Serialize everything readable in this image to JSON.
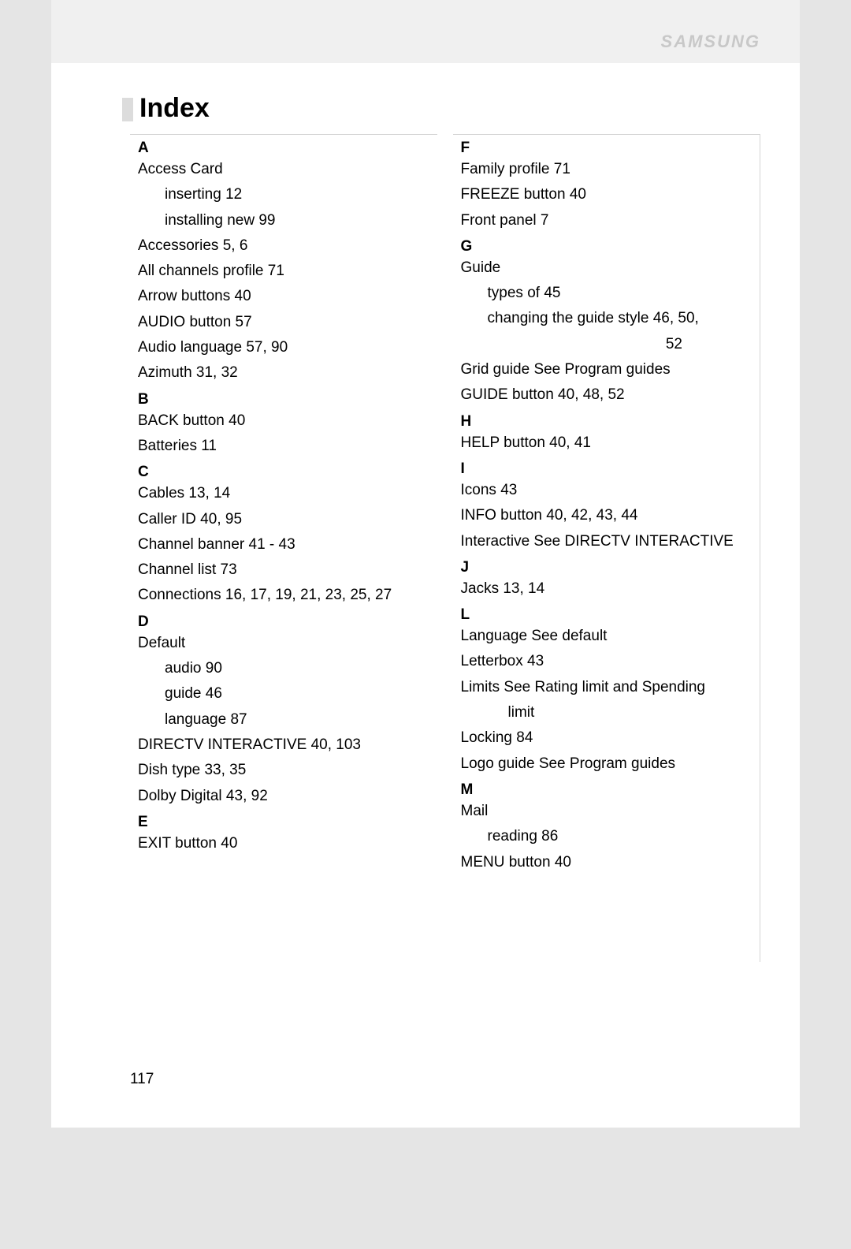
{
  "brand_text": "SAMSUNG",
  "page_title": "Index",
  "page_number": "117",
  "colors": {
    "page_bg": "#ffffff",
    "outer_bg": "#e5e5e5",
    "header_band": "#f0f0f0",
    "accent_block": "#dcdcdc",
    "brand_color": "#c8c8c8",
    "border_color": "#d4d4d4",
    "text_color": "#000000"
  },
  "typography": {
    "title_fontsize": 34,
    "body_fontsize": 19,
    "line_height": 1.7,
    "font_family": "Arial"
  },
  "left_column": [
    {
      "type": "letter",
      "text": "A"
    },
    {
      "type": "entry",
      "text": "Access Card"
    },
    {
      "type": "sub",
      "text": "inserting  12"
    },
    {
      "type": "sub",
      "text": "installing new  99"
    },
    {
      "type": "entry",
      "text": "Accessories  5, 6"
    },
    {
      "type": "entry",
      "text": "All channels profile  71"
    },
    {
      "type": "entry",
      "text": "Arrow buttons  40"
    },
    {
      "type": "entry",
      "text": "AUDIO button  57"
    },
    {
      "type": "entry",
      "text": "Audio language  57, 90"
    },
    {
      "type": "entry",
      "text": "Azimuth  31, 32"
    },
    {
      "type": "letter",
      "text": "B"
    },
    {
      "type": "entry",
      "text": "BACK button  40"
    },
    {
      "type": "entry",
      "text": "Batteries  11"
    },
    {
      "type": "letter",
      "text": "C"
    },
    {
      "type": "entry",
      "text": "Cables  13, 14"
    },
    {
      "type": "entry",
      "text": "Caller ID  40, 95"
    },
    {
      "type": "entry",
      "text": "Channel banner  41 - 43"
    },
    {
      "type": "entry",
      "text": "Channel list  73"
    },
    {
      "type": "entry",
      "text": "Connections  16, 17, 19, 21, 23, 25, 27"
    },
    {
      "type": "letter",
      "text": "D"
    },
    {
      "type": "entry",
      "text": "Default"
    },
    {
      "type": "sub",
      "text": "audio  90"
    },
    {
      "type": "sub",
      "text": "guide  46"
    },
    {
      "type": "sub",
      "text": "language  87"
    },
    {
      "type": "entry",
      "text": "DIRECTV INTERACTIVE  40, 103"
    },
    {
      "type": "entry",
      "text": "Dish type  33, 35"
    },
    {
      "type": "entry",
      "text": "Dolby Digital  43, 92"
    },
    {
      "type": "letter",
      "text": "E"
    },
    {
      "type": "entry",
      "text": "EXIT button  40"
    }
  ],
  "right_column": [
    {
      "type": "letter",
      "text": "F"
    },
    {
      "type": "entry",
      "text": "Family profile  71"
    },
    {
      "type": "entry",
      "text": "FREEZE button  40"
    },
    {
      "type": "entry",
      "text": "Front panel  7"
    },
    {
      "type": "letter",
      "text": "G"
    },
    {
      "type": "entry",
      "text": "Guide"
    },
    {
      "type": "sub",
      "text": "types of  45"
    },
    {
      "type": "sub",
      "text": "changing the guide style  46, 50,"
    },
    {
      "type": "right",
      "text": "52"
    },
    {
      "type": "entry",
      "text": "Grid guide  See Program guides"
    },
    {
      "type": "entry",
      "text": "GUIDE button  40, 48, 52"
    },
    {
      "type": "letter",
      "text": "H"
    },
    {
      "type": "entry",
      "text": "HELP button  40, 41"
    },
    {
      "type": "letter",
      "text": "I"
    },
    {
      "type": "entry",
      "text": "Icons  43"
    },
    {
      "type": "entry",
      "text": "INFO button  40, 42, 43, 44"
    },
    {
      "type": "entry",
      "text": "Interactive See DIRECTV INTERACTIVE"
    },
    {
      "type": "letter",
      "text": "J"
    },
    {
      "type": "entry",
      "text": "Jacks  13, 14"
    },
    {
      "type": "letter",
      "text": "L"
    },
    {
      "type": "entry",
      "text": "Language  See default"
    },
    {
      "type": "entry",
      "text": "Letterbox  43"
    },
    {
      "type": "entry",
      "text": "Limits  See Rating limit and Spending"
    },
    {
      "type": "sub2",
      "text": "limit"
    },
    {
      "type": "entry",
      "text": "Locking  84"
    },
    {
      "type": "entry",
      "text": "Logo guide  See Program guides"
    },
    {
      "type": "letter",
      "text": "M"
    },
    {
      "type": "entry",
      "text": "Mail"
    },
    {
      "type": "sub",
      "text": "reading  86"
    },
    {
      "type": "entry",
      "text": "MENU button  40"
    }
  ]
}
